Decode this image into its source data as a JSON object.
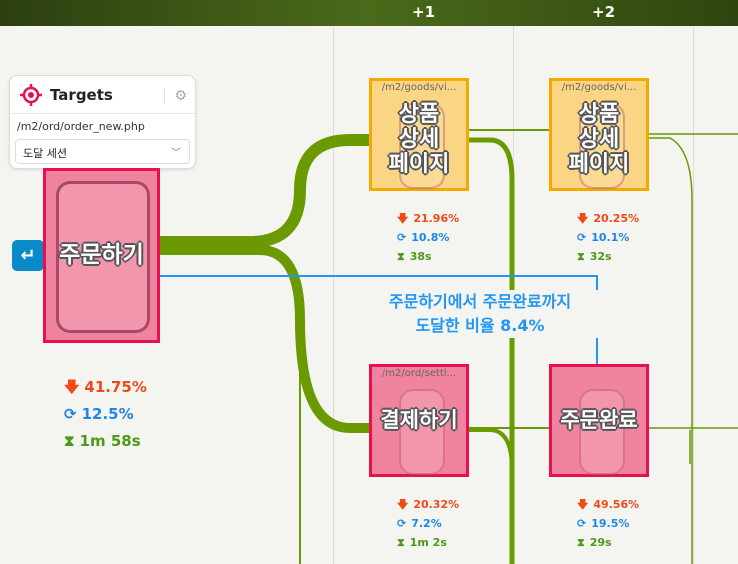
{
  "header": {
    "steps": [
      "+1",
      "+2"
    ]
  },
  "targets": {
    "title": "Targets",
    "url": "/m2/ord/order_new.php",
    "select_value": "도달 세션"
  },
  "start_node": {
    "label": "주문하기",
    "stats": {
      "drop": "41.75%",
      "return": "12.5%",
      "time": "1m 58s"
    }
  },
  "nodes": [
    {
      "url": "/m2/goods/vi...",
      "label": "상품\n상세\n페이지",
      "stats": {
        "drop": "21.96%",
        "return": "10.8%",
        "time": "38s"
      }
    },
    {
      "url": "/m2/goods/vi...",
      "label": "상품\n상세\n페이지",
      "stats": {
        "drop": "20.25%",
        "return": "10.1%",
        "time": "32s"
      }
    },
    {
      "url": "/m2/ord/settl...",
      "label": "결제하기",
      "stats": {
        "drop": "20.32%",
        "return": "7.2%",
        "time": "1m 2s"
      }
    },
    {
      "url": "",
      "label": "주문완료",
      "stats": {
        "drop": "49.56%",
        "return": "19.5%",
        "time": "29s"
      }
    }
  ],
  "callout": {
    "line1": "주문하기에서 주문완료까지",
    "line2": "도달한 비율 8.4%"
  },
  "colors": {
    "flow": "#6a9a00",
    "callout": "#2196f3",
    "target": "#e8104e",
    "page": "#f5a800"
  }
}
